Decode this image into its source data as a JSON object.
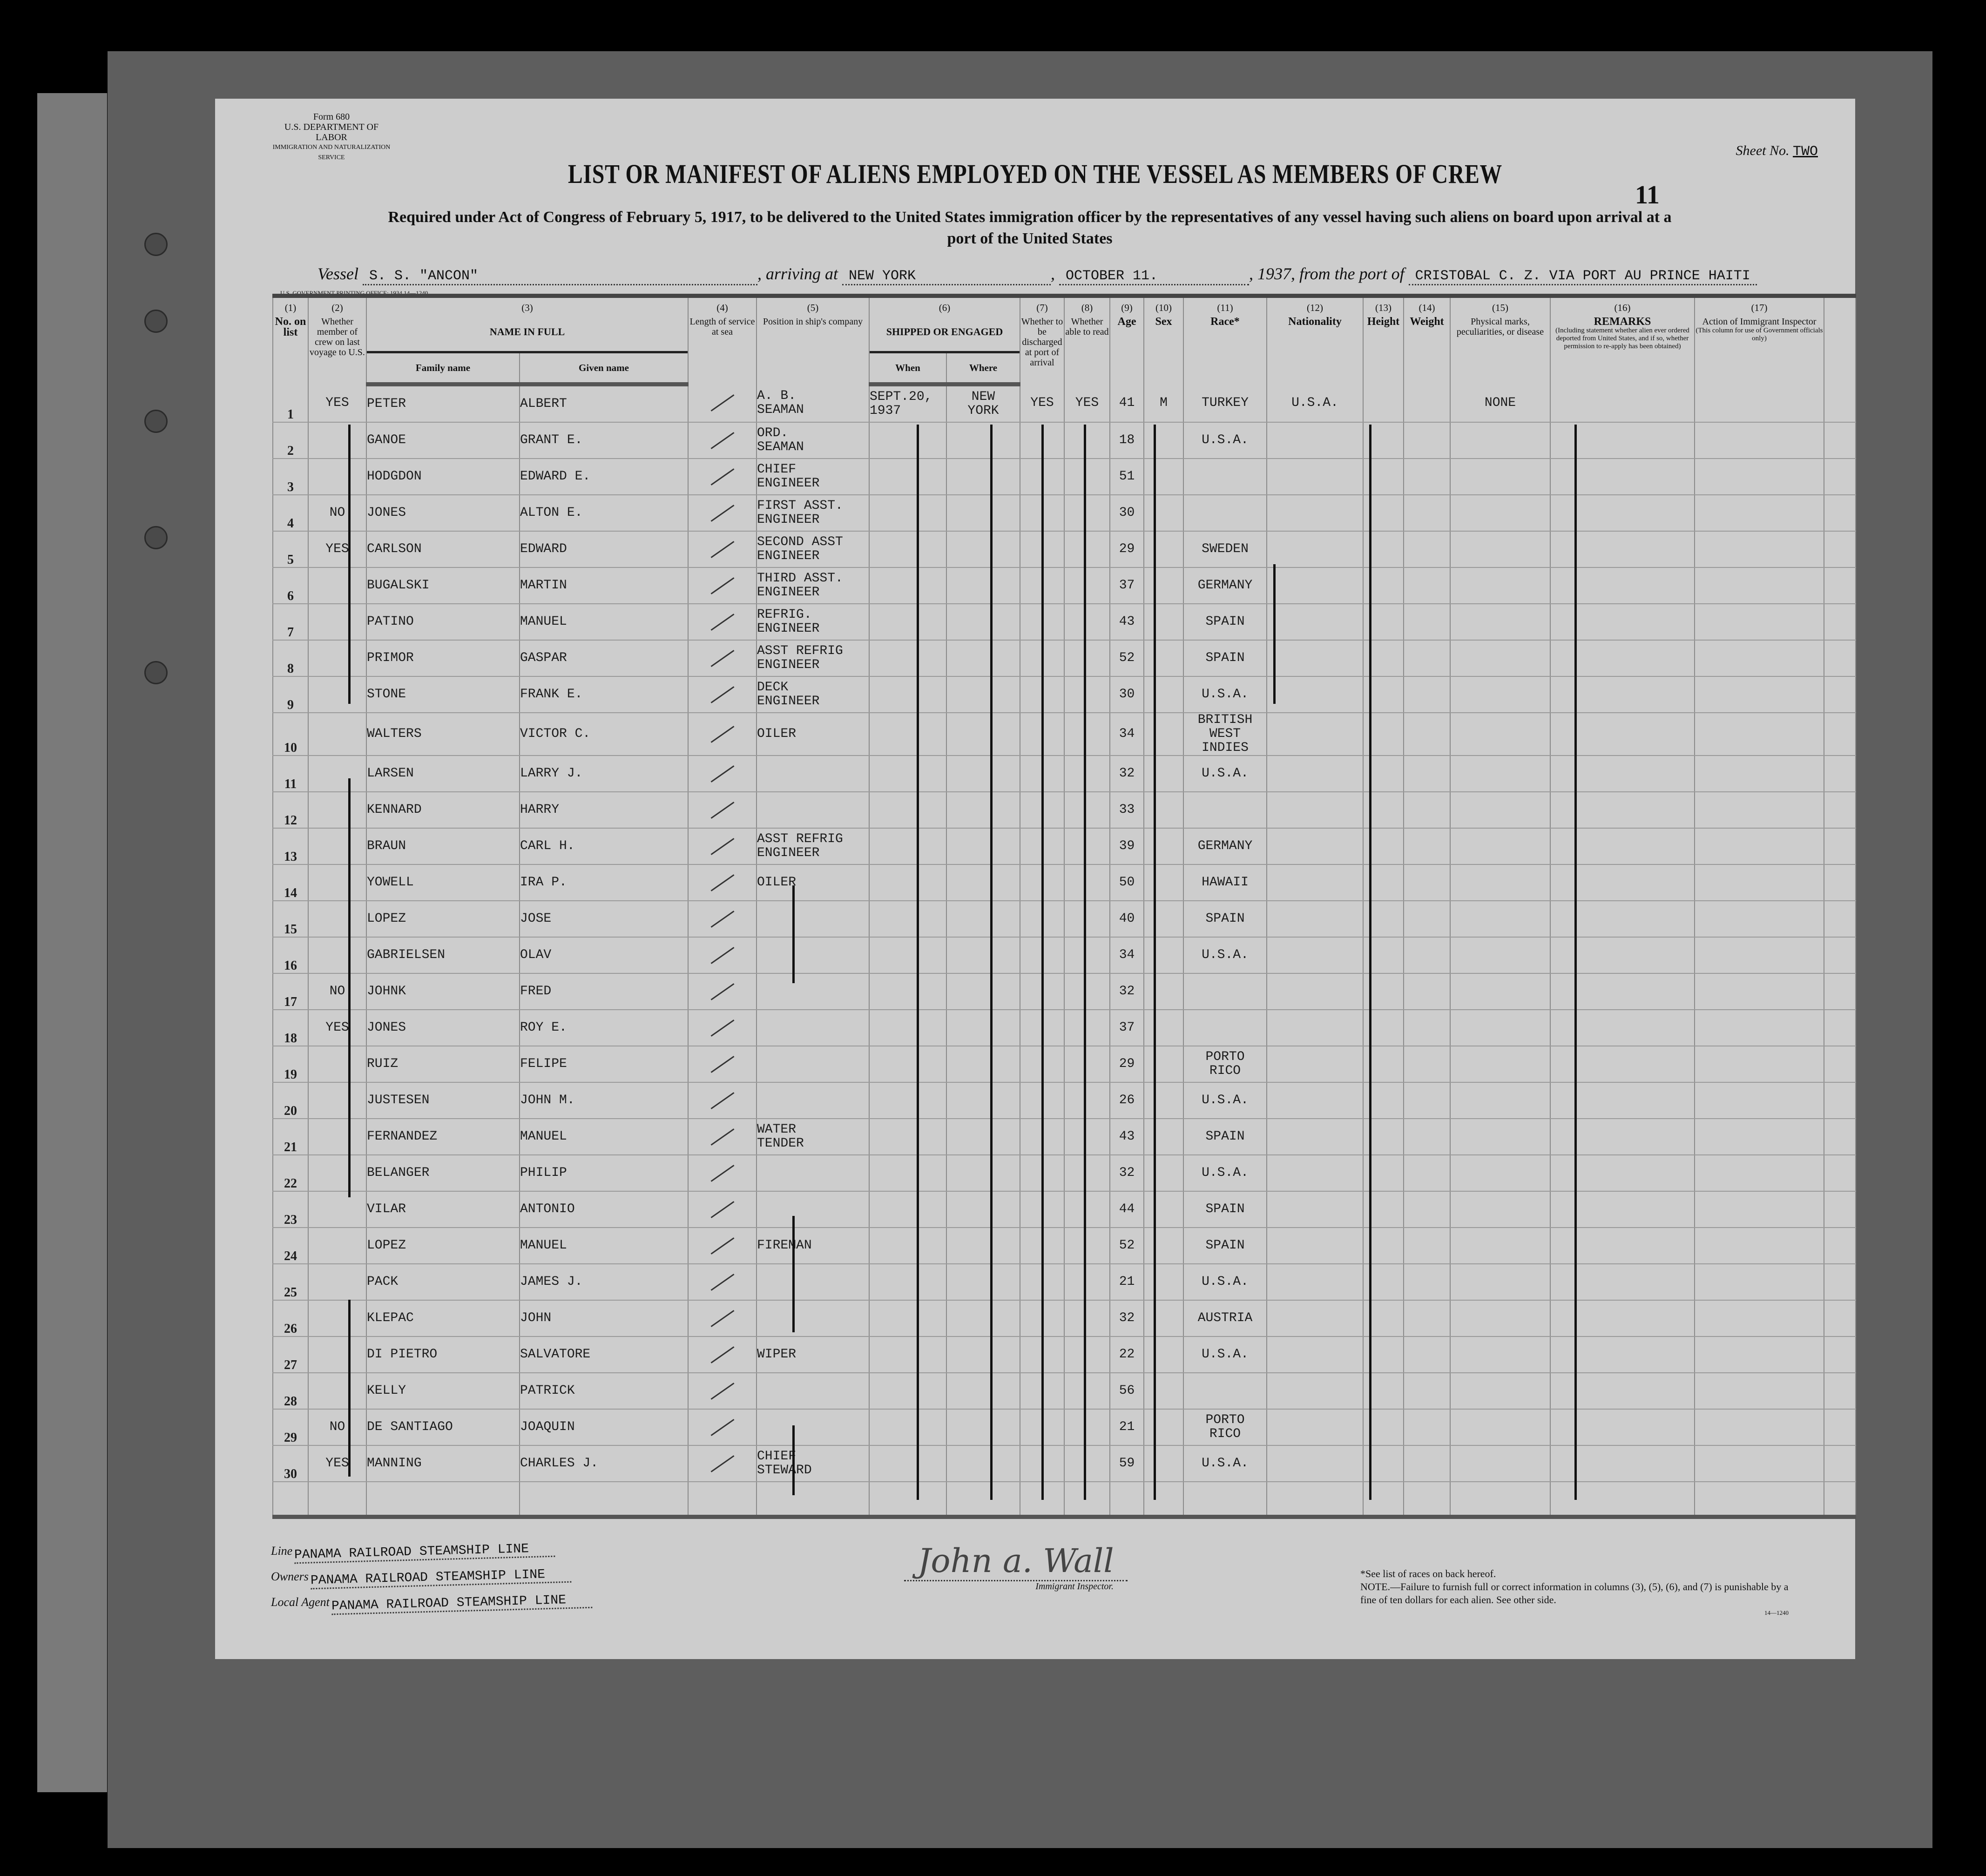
{
  "form": {
    "form_number": "Form 680",
    "department": "U.S. DEPARTMENT OF LABOR",
    "service": "IMMIGRATION AND NATURALIZATION SERVICE",
    "sheet_label": "Sheet No.",
    "sheet_value": "TWO",
    "title": "LIST OR MANIFEST OF ALIENS EMPLOYED ON THE VESSEL AS MEMBERS OF CREW",
    "page_number": "11",
    "subtitle_line1": "Required under Act of Congress of February 5, 1917, to be delivered to the United States immigration officer by the representatives of any vessel having such aliens on board upon arrival at a",
    "subtitle_line2": "port of the United States",
    "printing_office": "U.S. GOVERNMENT PRINTING OFFICE: 1934    14—1240"
  },
  "vessel_line": {
    "vessel_label": "Vessel",
    "vessel": "S. S. \"ANCON\"",
    "arriving_label": ", arriving at",
    "arriving_at": "NEW YORK",
    "date": "OCTOBER  11.",
    "year_prefix": ", 19",
    "year": "37",
    "from_label": ", from the port of",
    "from_port": "CRISTOBAL C. Z. VIA PORT AU PRINCE HAITI"
  },
  "columns": {
    "c1": {
      "num": "(1)",
      "label": "No. on list"
    },
    "c2": {
      "num": "(2)",
      "label": "Whether member of crew on last voyage to U.S."
    },
    "c3": {
      "num": "(3)",
      "label": "NAME IN FULL",
      "family": "Family name",
      "given": "Given name"
    },
    "c4": {
      "num": "(4)",
      "label": "Length of service at sea"
    },
    "c5": {
      "num": "(5)",
      "label": "Position in ship's company"
    },
    "c6": {
      "num": "(6)",
      "label": "SHIPPED OR ENGAGED",
      "when": "When",
      "where": "Where"
    },
    "c7": {
      "num": "(7)",
      "label": "Whether to be discharged at port of arrival"
    },
    "c8": {
      "num": "(8)",
      "label": "Whether able to read"
    },
    "c9": {
      "num": "(9)",
      "label": "Age"
    },
    "c10": {
      "num": "(10)",
      "label": "Sex"
    },
    "c11": {
      "num": "(11)",
      "label": "Race*"
    },
    "c12": {
      "num": "(12)",
      "label": "Nationality"
    },
    "c13": {
      "num": "(13)",
      "label": "Height"
    },
    "c14": {
      "num": "(14)",
      "label": "Weight"
    },
    "c15": {
      "num": "(15)",
      "label": "Physical marks, peculiarities, or disease"
    },
    "c16": {
      "num": "(16)",
      "label": "REMARKS",
      "sublabel": "(Including statement whether alien ever ordered deported from United States, and if so, whether permission to re-apply has been obtained)"
    },
    "c17": {
      "num": "(17)",
      "label": "Action of Immigrant Inspector",
      "sublabel": "(This column for use of Government officials only)"
    }
  },
  "rows": [
    {
      "no": "1",
      "crew": "YES",
      "family": "PETER",
      "given": "ALBERT",
      "position": "A. B.\nSEAMAN",
      "when": "SEPT.20,\n1937",
      "where": "NEW\nYORK",
      "discharged": "YES",
      "read": "YES",
      "age": "41",
      "sex": "M",
      "race": "TURKEY",
      "nationality": "U.S.A.",
      "physical": "NONE"
    },
    {
      "no": "2",
      "crew": "",
      "family": "GANOE",
      "given": "GRANT E.",
      "position": "ORD.\nSEAMAN",
      "age": "18",
      "race": "U.S.A."
    },
    {
      "no": "3",
      "crew": "",
      "family": "HODGDON",
      "given": "EDWARD E.",
      "position": "CHIEF\nENGINEER",
      "age": "51",
      "race": ""
    },
    {
      "no": "4",
      "crew": "NO",
      "family": "JONES",
      "given": "ALTON E.",
      "position": "FIRST ASST.\nENGINEER",
      "age": "30",
      "race": ""
    },
    {
      "no": "5",
      "crew": "YES",
      "family": "CARLSON",
      "given": "EDWARD",
      "position": "SECOND ASST\nENGINEER",
      "age": "29",
      "race": "SWEDEN"
    },
    {
      "no": "6",
      "crew": "",
      "family": "BUGALSKI",
      "given": "MARTIN",
      "position": "THIRD ASST.\nENGINEER",
      "age": "37",
      "race": "GERMANY"
    },
    {
      "no": "7",
      "crew": "",
      "family": "PATINO",
      "given": "MANUEL",
      "position": "REFRIG.\nENGINEER",
      "age": "43",
      "race": "SPAIN"
    },
    {
      "no": "8",
      "crew": "",
      "family": "PRIMOR",
      "given": "GASPAR",
      "position": "ASST REFRIG\nENGINEER",
      "age": "52",
      "race": "SPAIN"
    },
    {
      "no": "9",
      "crew": "",
      "family": "STONE",
      "given": "FRANK E.",
      "position": "DECK\nENGINEER",
      "age": "30",
      "race": "U.S.A."
    },
    {
      "no": "10",
      "crew": "",
      "family": "WALTERS",
      "given": "VICTOR C.",
      "position": "OILER",
      "age": "34",
      "race": "BRITISH\nWEST INDIES"
    },
    {
      "no": "11",
      "crew": "",
      "family": "LARSEN",
      "given": "LARRY J.",
      "position": "",
      "age": "32",
      "race": "U.S.A."
    },
    {
      "no": "12",
      "crew": "",
      "family": "KENNARD",
      "given": "HARRY",
      "position": "",
      "age": "33",
      "race": ""
    },
    {
      "no": "13",
      "crew": "",
      "family": "BRAUN",
      "given": "CARL H.",
      "position": "ASST REFRIG\nENGINEER",
      "age": "39",
      "race": "GERMANY"
    },
    {
      "no": "14",
      "crew": "",
      "family": "YOWELL",
      "given": "IRA P.",
      "position": "OILER",
      "age": "50",
      "race": "HAWAII"
    },
    {
      "no": "15",
      "crew": "",
      "family": "LOPEZ",
      "given": "JOSE",
      "position": "",
      "age": "40",
      "race": "SPAIN"
    },
    {
      "no": "16",
      "crew": "",
      "family": "GABRIELSEN",
      "given": "OLAV",
      "position": "",
      "age": "34",
      "race": "U.S.A."
    },
    {
      "no": "17",
      "crew": "NO",
      "family": "JOHNK",
      "given": "FRED",
      "position": "",
      "age": "32",
      "race": ""
    },
    {
      "no": "18",
      "crew": "YES",
      "family": "JONES",
      "given": "ROY E.",
      "position": "",
      "age": "37",
      "race": ""
    },
    {
      "no": "19",
      "crew": "",
      "family": "RUIZ",
      "given": "FELIPE",
      "position": "",
      "age": "29",
      "race": "PORTO\nRICO"
    },
    {
      "no": "20",
      "crew": "",
      "family": "JUSTESEN",
      "given": "JOHN M.",
      "position": "",
      "age": "26",
      "race": "U.S.A."
    },
    {
      "no": "21",
      "crew": "",
      "family": "FERNANDEZ",
      "given": "MANUEL",
      "position": "WATER\nTENDER",
      "age": "43",
      "race": "SPAIN"
    },
    {
      "no": "22",
      "crew": "",
      "family": "BELANGER",
      "given": "PHILIP",
      "position": "",
      "age": "32",
      "race": "U.S.A."
    },
    {
      "no": "23",
      "crew": "",
      "family": "VILAR",
      "given": "ANTONIO",
      "position": "",
      "age": "44",
      "race": "SPAIN"
    },
    {
      "no": "24",
      "crew": "",
      "family": "LOPEZ",
      "given": "MANUEL",
      "position": "FIREMAN",
      "age": "52",
      "race": "SPAIN"
    },
    {
      "no": "25",
      "crew": "",
      "family": "PACK",
      "given": "JAMES J.",
      "position": "",
      "age": "21",
      "race": "U.S.A."
    },
    {
      "no": "26",
      "crew": "",
      "family": "KLEPAC",
      "given": "JOHN",
      "position": "",
      "age": "32",
      "race": "AUSTRIA"
    },
    {
      "no": "27",
      "crew": "",
      "family": "DI PIETRO",
      "given": "SALVATORE",
      "position": "WIPER",
      "age": "22",
      "race": "U.S.A."
    },
    {
      "no": "28",
      "crew": "",
      "family": "KELLY",
      "given": "PATRICK",
      "position": "",
      "age": "56",
      "race": ""
    },
    {
      "no": "29",
      "crew": "NO",
      "family": "DE SANTIAGO",
      "given": "JOAQUIN",
      "position": "",
      "age": "21",
      "race": "PORTO\nRICO"
    },
    {
      "no": "30",
      "crew": "YES",
      "family": "MANNING",
      "given": "CHARLES J.",
      "position": "CHIEF\nSTEWARD",
      "age": "59",
      "race": "U.S.A."
    }
  ],
  "footer": {
    "line_label": "Line",
    "line_value": "PANAMA RAILROAD STEAMSHIP  LINE",
    "owners_label": "Owners",
    "owners_value": "PANAMA RAILROAD STEAMSHIP LINE",
    "agent_label": "Local Agent",
    "agent_value": "PANAMA RAILROAD STEAMSHIP LINE",
    "signature": "John a. Wall",
    "signature_caption": "Immigrant Inspector.",
    "note_races": "*See list of races on back hereof.",
    "note_penalty": "NOTE.—Failure to furnish full or correct information in columns (3), (5), (6), and (7) is punishable by a fine of ten dollars for each alien.  See other side.",
    "form_code": "14—1240"
  }
}
